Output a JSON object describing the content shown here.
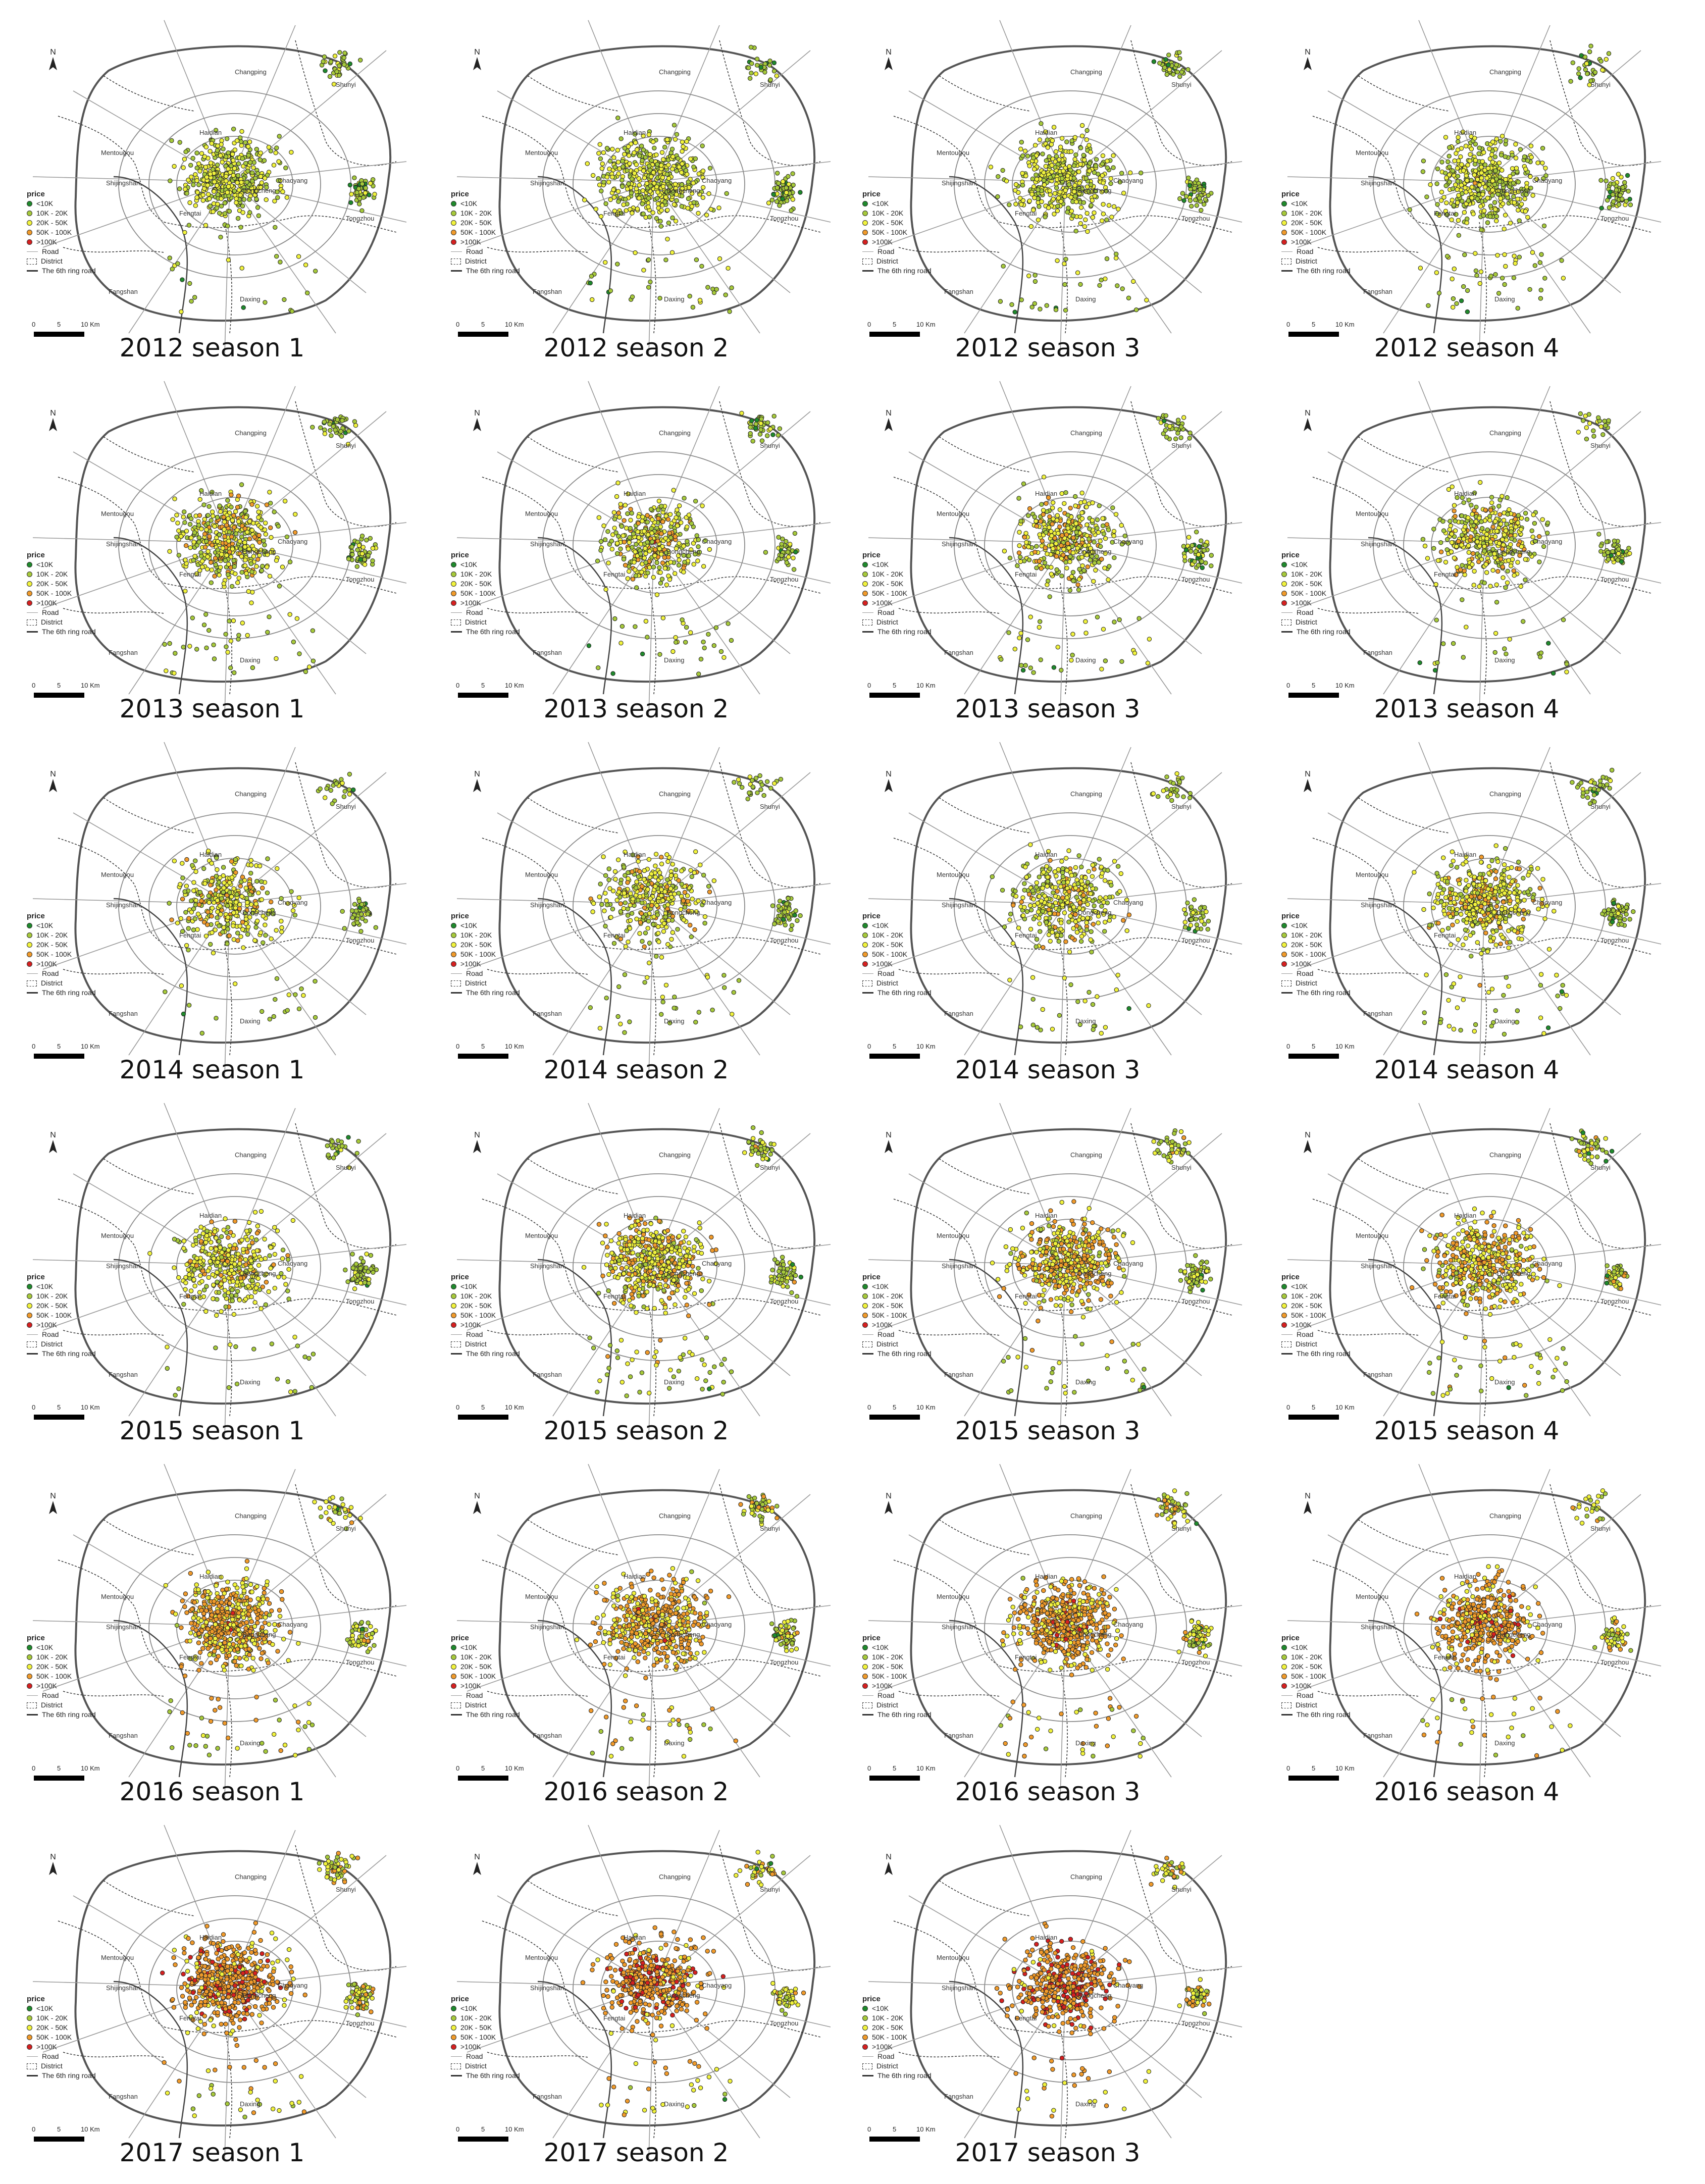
{
  "legend": {
    "title": "price",
    "classes": [
      {
        "label": "<10K",
        "color": "#1f8a2c"
      },
      {
        "label": "10K - 20K",
        "color": "#a6c93a"
      },
      {
        "label": "20K - 50K",
        "color": "#f0f23c"
      },
      {
        "label": "50K - 100K",
        "color": "#f09a2a"
      },
      {
        "label": ">100K",
        "color": "#d62020"
      }
    ],
    "road_label": "Road",
    "district_label": "District",
    "ring_label": "The 6th ring road"
  },
  "scale": {
    "zero": "0",
    "mid": "5",
    "end": "10 Km"
  },
  "north_label": "N",
  "districts": [
    "Changping",
    "Shunyi",
    "Haidian",
    "Mentougou",
    "Shijingshan",
    "Chaoyang",
    "Dongcheng",
    "Fengtai",
    "Tongzhou",
    "Fangshan",
    "Daxing"
  ],
  "panels": [
    {
      "title": "2012 season 1",
      "mix": [
        0.08,
        0.42,
        0.48,
        0.02,
        0.0
      ],
      "n": 520
    },
    {
      "title": "2012 season 2",
      "mix": [
        0.07,
        0.42,
        0.49,
        0.02,
        0.0
      ],
      "n": 560
    },
    {
      "title": "2012 season 3",
      "mix": [
        0.08,
        0.4,
        0.5,
        0.02,
        0.0
      ],
      "n": 540
    },
    {
      "title": "2012 season 4",
      "mix": [
        0.07,
        0.4,
        0.5,
        0.03,
        0.0
      ],
      "n": 560
    },
    {
      "title": "2013 season 1",
      "mix": [
        0.06,
        0.36,
        0.4,
        0.17,
        0.01
      ],
      "n": 560
    },
    {
      "title": "2013 season 2",
      "mix": [
        0.06,
        0.38,
        0.4,
        0.15,
        0.01
      ],
      "n": 440
    },
    {
      "title": "2013 season 3",
      "mix": [
        0.06,
        0.36,
        0.4,
        0.17,
        0.01
      ],
      "n": 480
    },
    {
      "title": "2013 season 4",
      "mix": [
        0.06,
        0.36,
        0.4,
        0.17,
        0.01
      ],
      "n": 460
    },
    {
      "title": "2014 season 1",
      "mix": [
        0.05,
        0.34,
        0.41,
        0.19,
        0.01
      ],
      "n": 420
    },
    {
      "title": "2014 season 2",
      "mix": [
        0.05,
        0.36,
        0.41,
        0.17,
        0.01
      ],
      "n": 440
    },
    {
      "title": "2014 season 3",
      "mix": [
        0.05,
        0.36,
        0.42,
        0.16,
        0.01
      ],
      "n": 460
    },
    {
      "title": "2014 season 4",
      "mix": [
        0.05,
        0.34,
        0.41,
        0.19,
        0.01
      ],
      "n": 580
    },
    {
      "title": "2015 season 1",
      "mix": [
        0.05,
        0.3,
        0.46,
        0.18,
        0.01
      ],
      "n": 480
    },
    {
      "title": "2015 season 2",
      "mix": [
        0.04,
        0.26,
        0.42,
        0.26,
        0.02
      ],
      "n": 620
    },
    {
      "title": "2015 season 3",
      "mix": [
        0.04,
        0.22,
        0.38,
        0.34,
        0.02
      ],
      "n": 620
    },
    {
      "title": "2015 season 4",
      "mix": [
        0.04,
        0.22,
        0.36,
        0.36,
        0.02
      ],
      "n": 560
    },
    {
      "title": "2016 season 1",
      "mix": [
        0.03,
        0.18,
        0.3,
        0.45,
        0.04
      ],
      "n": 620
    },
    {
      "title": "2016 season 2",
      "mix": [
        0.03,
        0.15,
        0.27,
        0.5,
        0.05
      ],
      "n": 620
    },
    {
      "title": "2016 season 3",
      "mix": [
        0.03,
        0.12,
        0.25,
        0.54,
        0.06
      ],
      "n": 680
    },
    {
      "title": "2016 season 4",
      "mix": [
        0.03,
        0.1,
        0.22,
        0.55,
        0.1
      ],
      "n": 520
    },
    {
      "title": "2017 season 1",
      "mix": [
        0.02,
        0.08,
        0.2,
        0.54,
        0.16
      ],
      "n": 660
    },
    {
      "title": "2017 season 2",
      "mix": [
        0.02,
        0.06,
        0.18,
        0.54,
        0.2
      ],
      "n": 520
    },
    {
      "title": "2017 season 3",
      "mix": [
        0.02,
        0.06,
        0.18,
        0.54,
        0.2
      ],
      "n": 520
    }
  ]
}
